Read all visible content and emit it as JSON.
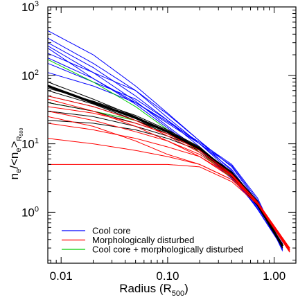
{
  "chart_data": {
    "type": "line",
    "xlabel": "Radius (R500)",
    "xlabel_main": "Radius (R",
    "xlabel_sub": "500",
    "xlabel_close": ")",
    "ylabel": "ne/<ne>R500",
    "x_scale": "log",
    "y_scale": "log",
    "xlim": [
      0.0075,
      1.6
    ],
    "ylim": [
      0.18,
      1000
    ],
    "x_ticks": [
      {
        "value": 0.01,
        "label": "0.01"
      },
      {
        "value": 0.1,
        "label": "0.10"
      },
      {
        "value": 1.0,
        "label": "1.00"
      }
    ],
    "y_ticks": [
      {
        "value": 1,
        "base": "10",
        "exp": "0"
      },
      {
        "value": 10,
        "base": "10",
        "exp": "1"
      },
      {
        "value": 100,
        "base": "10",
        "exp": "2"
      },
      {
        "value": 1000,
        "base": "10",
        "exp": "3"
      }
    ],
    "grid": false,
    "legend_position": "bottom-left",
    "legend": [
      {
        "label": "Cool core",
        "color": "#0000ff"
      },
      {
        "label": "Morphologically disturbed",
        "color": "#ff0000"
      },
      {
        "label": "Cool core + morphologically disturbed",
        "color": "#00cc00"
      }
    ],
    "series": [
      {
        "group": "cool-core",
        "color": "#0000ff",
        "width": 1,
        "x": [
          0.0075,
          0.02,
          0.05,
          0.1,
          0.2,
          0.4,
          0.7,
          1.2
        ],
        "y": [
          450,
          200,
          70,
          28,
          11,
          4,
          1.2,
          0.35
        ]
      },
      {
        "group": "cool-core",
        "color": "#0000ff",
        "width": 1,
        "x": [
          0.0075,
          0.02,
          0.05,
          0.1,
          0.2,
          0.4,
          0.7,
          1.2
        ],
        "y": [
          350,
          150,
          60,
          24,
          10,
          3.8,
          1.1,
          0.3
        ]
      },
      {
        "group": "cool-core",
        "color": "#0000ff",
        "width": 1,
        "x": [
          0.0075,
          0.02,
          0.05,
          0.1,
          0.2,
          0.4,
          0.7,
          1.2
        ],
        "y": [
          300,
          130,
          50,
          22,
          9,
          3.5,
          1.1,
          0.32
        ]
      },
      {
        "group": "cool-core",
        "color": "#0000ff",
        "width": 1,
        "x": [
          0.0075,
          0.02,
          0.05,
          0.1,
          0.2,
          0.4,
          0.7,
          1.2
        ],
        "y": [
          270,
          110,
          42,
          18,
          8,
          3.2,
          1.15,
          0.34
        ]
      },
      {
        "group": "cool-core",
        "color": "#0000ff",
        "width": 1,
        "x": [
          0.0075,
          0.02,
          0.05,
          0.1,
          0.2,
          0.4,
          0.7,
          1.2
        ],
        "y": [
          250,
          90,
          38,
          17,
          7.5,
          3.1,
          1.2,
          0.38
        ]
      },
      {
        "group": "cool-core",
        "color": "#0000ff",
        "width": 1,
        "x": [
          0.0075,
          0.02,
          0.05,
          0.1,
          0.2,
          0.4,
          0.7,
          1.2
        ],
        "y": [
          180,
          90,
          40,
          20,
          10,
          4.2,
          1.3,
          0.3
        ]
      },
      {
        "group": "cool-core",
        "color": "#0000ff",
        "width": 1,
        "x": [
          0.0075,
          0.02,
          0.05,
          0.1,
          0.2,
          0.4,
          0.7,
          1.2
        ],
        "y": [
          150,
          80,
          45,
          22,
          10,
          4.8,
          1.5,
          0.28
        ]
      },
      {
        "group": "cool-core",
        "color": "#0000ff",
        "width": 1,
        "x": [
          0.0075,
          0.02,
          0.05,
          0.1,
          0.2,
          0.4,
          0.7,
          1.2
        ],
        "y": [
          210,
          110,
          60,
          27,
          11,
          4.6,
          1.4,
          0.29
        ]
      },
      {
        "group": "cool-core",
        "color": "#0000ff",
        "width": 1,
        "x": [
          0.0075,
          0.02,
          0.05,
          0.1,
          0.2,
          0.4,
          0.7,
          1.2
        ],
        "y": [
          110,
          70,
          40,
          21,
          10.5,
          5,
          1.6,
          0.27
        ]
      },
      {
        "group": "cool-core-disturbed",
        "color": "#00cc00",
        "width": 1,
        "x": [
          0.0075,
          0.02,
          0.05,
          0.1,
          0.2,
          0.4,
          0.7,
          1.4
        ],
        "y": [
          170,
          80,
          35,
          16,
          7.5,
          3.2,
          1.3,
          0.27
        ]
      },
      {
        "group": "cool-core-disturbed",
        "color": "#00cc00",
        "width": 1,
        "x": [
          0.0075,
          0.02,
          0.05,
          0.1,
          0.2,
          0.4,
          0.7,
          1.4
        ],
        "y": [
          40,
          30,
          22,
          14,
          8,
          3.5,
          1.3,
          0.3
        ]
      },
      {
        "group": "mean",
        "color": "#000000",
        "width": 3.5,
        "x": [
          0.0075,
          0.02,
          0.05,
          0.1,
          0.2,
          0.4,
          0.7,
          1.2
        ],
        "y": [
          70,
          40,
          24,
          15,
          8.5,
          3.5,
          1.3,
          0.32
        ]
      },
      {
        "group": "other",
        "color": "#000000",
        "width": 1,
        "x": [
          0.0075,
          0.02,
          0.05,
          0.1,
          0.2,
          0.4,
          0.7,
          1.2
        ],
        "y": [
          80,
          45,
          25,
          15,
          8,
          3.3,
          1.25,
          0.33
        ]
      },
      {
        "group": "other",
        "color": "#000000",
        "width": 1,
        "x": [
          0.0075,
          0.02,
          0.05,
          0.1,
          0.2,
          0.4,
          0.7,
          1.2
        ],
        "y": [
          60,
          38,
          22,
          14,
          8,
          3.4,
          1.3,
          0.34
        ]
      },
      {
        "group": "other",
        "color": "#000000",
        "width": 1,
        "x": [
          0.0075,
          0.02,
          0.05,
          0.1,
          0.2,
          0.4,
          0.7,
          1.2
        ],
        "y": [
          50,
          35,
          22,
          15,
          8.5,
          3.6,
          1.35,
          0.3
        ]
      },
      {
        "group": "other",
        "color": "#000000",
        "width": 1,
        "x": [
          0.0075,
          0.02,
          0.05,
          0.1,
          0.2,
          0.4,
          0.7,
          1.2
        ],
        "y": [
          40,
          30,
          20,
          14,
          8.5,
          3.8,
          1.4,
          0.3
        ]
      },
      {
        "group": "other",
        "color": "#000000",
        "width": 1,
        "x": [
          0.0075,
          0.02,
          0.05,
          0.1,
          0.2,
          0.4,
          0.7,
          1.2
        ],
        "y": [
          30,
          25,
          18,
          13,
          8.5,
          3.9,
          1.45,
          0.31
        ]
      },
      {
        "group": "other",
        "color": "#000000",
        "width": 1,
        "x": [
          0.0075,
          0.02,
          0.05,
          0.1,
          0.2,
          0.4,
          0.7,
          1.2
        ],
        "y": [
          22,
          20,
          16,
          12,
          8,
          3.7,
          1.4,
          0.33
        ]
      },
      {
        "group": "other",
        "color": "#000000",
        "width": 1,
        "x": [
          0.0075,
          0.02,
          0.05,
          0.1,
          0.2,
          0.4,
          0.7,
          1.2
        ],
        "y": [
          65,
          42,
          26,
          16,
          9,
          3.6,
          1.3,
          0.32
        ]
      },
      {
        "group": "disturbed",
        "color": "#ff0000",
        "width": 1,
        "x": [
          0.0075,
          0.02,
          0.05,
          0.1,
          0.2,
          0.4,
          0.7,
          1.4
        ],
        "y": [
          5,
          5,
          5,
          5,
          4.6,
          2.8,
          1.3,
          0.3
        ]
      },
      {
        "group": "disturbed",
        "color": "#ff0000",
        "width": 1,
        "x": [
          0.0075,
          0.02,
          0.05,
          0.1,
          0.2,
          0.4,
          0.7,
          1.4
        ],
        "y": [
          12,
          10,
          8,
          6.5,
          5,
          3,
          1.4,
          0.28
        ]
      },
      {
        "group": "disturbed",
        "color": "#ff0000",
        "width": 1,
        "x": [
          0.0075,
          0.02,
          0.05,
          0.1,
          0.2,
          0.4,
          0.7,
          1.4
        ],
        "y": [
          20,
          16,
          12,
          9,
          6.5,
          3.4,
          1.4,
          0.27
        ]
      },
      {
        "group": "disturbed",
        "color": "#ff0000",
        "width": 1,
        "x": [
          0.0075,
          0.02,
          0.05,
          0.1,
          0.2,
          0.4,
          0.7,
          1.4
        ],
        "y": [
          30,
          22,
          15,
          11,
          7,
          3.4,
          1.3,
          0.26
        ]
      },
      {
        "group": "disturbed",
        "color": "#ff0000",
        "width": 1,
        "x": [
          0.0075,
          0.02,
          0.05,
          0.1,
          0.2,
          0.4,
          0.7,
          1.4
        ],
        "y": [
          45,
          30,
          18,
          11,
          6.5,
          3.2,
          1.35,
          0.28
        ]
      },
      {
        "group": "disturbed",
        "color": "#ff0000",
        "width": 1,
        "x": [
          0.0075,
          0.02,
          0.05,
          0.1,
          0.2,
          0.4,
          0.7,
          1.4
        ],
        "y": [
          50,
          35,
          22,
          13,
          7.5,
          3.5,
          1.4,
          0.3
        ]
      },
      {
        "group": "disturbed",
        "color": "#ff0000",
        "width": 1,
        "x": [
          0.0075,
          0.02,
          0.05,
          0.1,
          0.2,
          0.4,
          0.7,
          1.4
        ],
        "y": [
          35,
          28,
          20,
          14,
          8,
          3.6,
          1.4,
          0.29
        ]
      },
      {
        "group": "disturbed",
        "color": "#ff0000",
        "width": 1,
        "x": [
          0.0075,
          0.02,
          0.05,
          0.1,
          0.2,
          0.4,
          0.7,
          1.4
        ],
        "y": [
          25,
          18,
          11,
          7,
          5,
          3,
          1.35,
          0.27
        ]
      }
    ]
  }
}
